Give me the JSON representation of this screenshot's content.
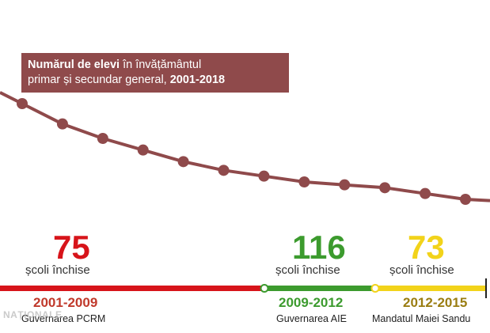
{
  "title": {
    "bold_part": "Numărul de elevi",
    "normal_part": " în învățământul",
    "line2_normal": "primar și secundar general, ",
    "line2_bold": "2001-2018"
  },
  "chart_data": {
    "type": "line",
    "title": "Numărul de elevi în învățământul primar și secundar general, 2001-2018",
    "y_axis_shown": false,
    "x": [
      2001,
      2002,
      2003,
      2004,
      2005,
      2006,
      2007,
      2008,
      2009,
      2010,
      2011,
      2012
    ],
    "values": [
      100,
      93,
      88,
      84,
      80,
      77,
      75,
      73,
      72,
      71,
      69,
      67
    ],
    "ylim": [
      60,
      105
    ],
    "xlim": [
      2000.5,
      2012.5
    ],
    "color": "#8f4a4b"
  },
  "periods": [
    {
      "count": "75",
      "label": "școli închise",
      "years": "2001-2009",
      "gov": "Guvernarea PCRM",
      "color": "#d7141a",
      "yearColor": "#c0392b"
    },
    {
      "count": "116",
      "label": "școli închise",
      "years": "2009-2012",
      "gov": "Guvernarea AIE",
      "color": "#3c9b2e",
      "yearColor": "#3c9b2e"
    },
    {
      "count": "73",
      "label": "școli închise",
      "years": "2012-2015",
      "gov": "Mandatul Maiei Sandu",
      "color": "#f2d31a",
      "yearColor": "#9a7d12"
    }
  ],
  "watermark": "NAȚIONALE",
  "colors": {
    "line": "#8f4a4b",
    "timeline_end": "#222222"
  }
}
